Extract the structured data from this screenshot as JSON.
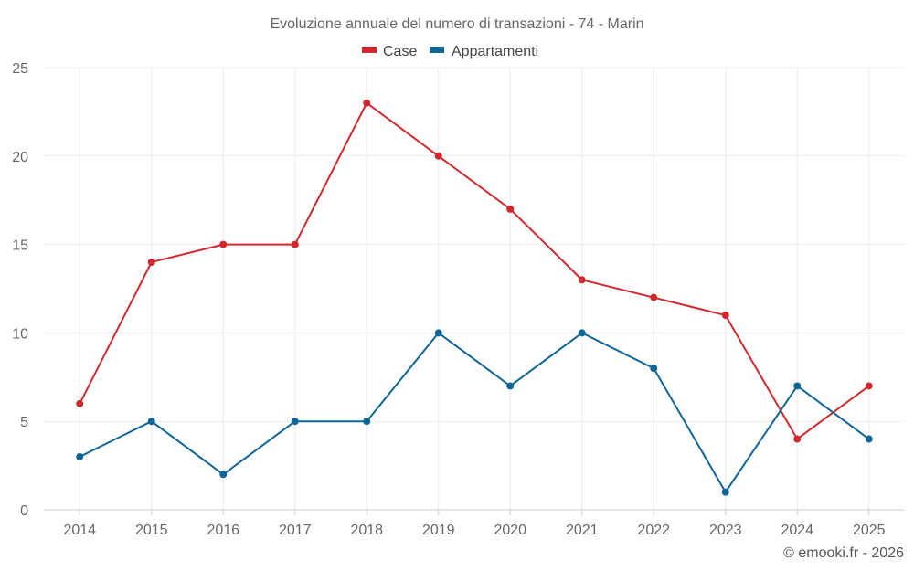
{
  "chart_data": {
    "type": "line",
    "title": "Evoluzione annuale del numero di transazioni - 74 - Marin",
    "categories": [
      "2014",
      "2015",
      "2016",
      "2017",
      "2018",
      "2019",
      "2020",
      "2021",
      "2022",
      "2023",
      "2024",
      "2025"
    ],
    "series": [
      {
        "name": "Case",
        "color": "#d0282e",
        "values": [
          6,
          14,
          15,
          15,
          23,
          20,
          17,
          13,
          12,
          11,
          4,
          7
        ]
      },
      {
        "name": "Appartamenti",
        "color": "#0d6696",
        "values": [
          3,
          5,
          2,
          5,
          5,
          10,
          7,
          10,
          8,
          1,
          7,
          4
        ]
      }
    ],
    "xlabel": "",
    "ylabel": "",
    "ylim": [
      0,
      25
    ],
    "yticks": [
      "0",
      "5",
      "10",
      "15",
      "20",
      "25"
    ],
    "grid": true,
    "legend_position": "top-center"
  },
  "credit": "© emooki.fr - 2026"
}
